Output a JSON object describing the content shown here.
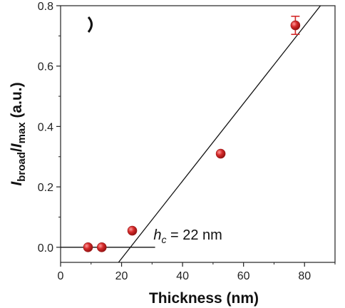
{
  "chart_data": {
    "type": "scatter",
    "xlabel": "Thickness (nm)",
    "ylabel_parts": {
      "i1": "I",
      "s1": "broad",
      "slash": "/",
      "i2": "I",
      "s2": "max",
      "unit": " (a.u.)"
    },
    "xlim": [
      0,
      90
    ],
    "ylim": [
      -0.05,
      0.8
    ],
    "x_ticks": [
      0,
      20,
      40,
      60,
      80
    ],
    "y_ticks": [
      0.0,
      0.2,
      0.4,
      0.6,
      0.8
    ],
    "x_tick_labels": [
      "0",
      "20",
      "40",
      "60",
      "80"
    ],
    "y_tick_labels": [
      "0.0",
      "0.2",
      "0.4",
      "0.6",
      "0.8"
    ],
    "series": [
      {
        "points": [
          {
            "x": 9,
            "y": 0.0
          },
          {
            "x": 13.5,
            "y": 0.0
          },
          {
            "x": 23.5,
            "y": 0.055
          },
          {
            "x": 52.5,
            "y": 0.31
          },
          {
            "x": 77,
            "y": 0.735,
            "err": 0.03
          }
        ]
      }
    ],
    "fit_line": [
      {
        "x": 19,
        "y": -0.05
      },
      {
        "x": 86,
        "y": 0.81
      }
    ],
    "baseline": [
      {
        "x": 0,
        "y": 0.0
      },
      {
        "x": 31,
        "y": 0.0
      }
    ],
    "annotation": {
      "h": "h",
      "sub": "c",
      "rest": " = 22 nm",
      "x": 30,
      "y": 0.025
    },
    "colors": {
      "marker": "#d42a2a",
      "line": "#111111"
    }
  }
}
